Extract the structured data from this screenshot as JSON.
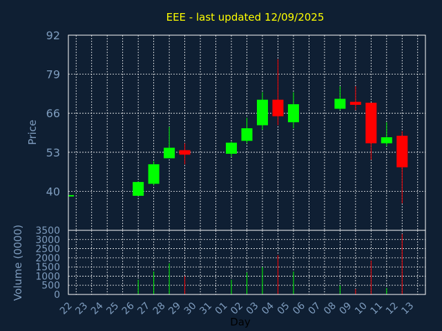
{
  "chart_data": {
    "type": "candlestick",
    "title": "EEE - last updated 12/09/2025",
    "xlabel": "Day",
    "ylabel_price": "Price",
    "ylabel_volume": "Volume (0000)",
    "price_ylim": [
      27,
      92
    ],
    "price_ticks": [
      40,
      53,
      66,
      79,
      92
    ],
    "volume_ylim": [
      0,
      3500
    ],
    "volume_ticks": [
      0,
      500,
      1000,
      1500,
      2000,
      2500,
      3000,
      3500
    ],
    "x_labels": [
      "22",
      "23",
      "24",
      "25",
      "26",
      "27",
      "28",
      "29",
      "30",
      "31",
      "01",
      "02",
      "03",
      "04",
      "05",
      "06",
      "07",
      "08",
      "09",
      "10",
      "11",
      "12",
      "13"
    ],
    "colors": {
      "background": "#0f1f33",
      "plot_border": "#ffffff",
      "grid": "#ffffff",
      "up": "#00ff00",
      "down": "#ff0000",
      "title": "#ffff00",
      "axis_text": "#7f9dbf",
      "xlabel_text": "#000000"
    },
    "candles": [
      {
        "i": 0,
        "open": 38.5,
        "high": 38.6,
        "low": 38.3,
        "close": 38.5,
        "volume": 0
      },
      {
        "i": 4,
        "open": 38.5,
        "high": 43.2,
        "low": 38.5,
        "close": 43.1,
        "volume": 800
      },
      {
        "i": 5,
        "open": 42.5,
        "high": 50.0,
        "low": 42.0,
        "close": 49.0,
        "volume": 1250
      },
      {
        "i": 6,
        "open": 51.0,
        "high": 61.5,
        "low": 51.0,
        "close": 54.5,
        "volume": 1700
      },
      {
        "i": 7,
        "open": 53.7,
        "high": 56.0,
        "low": 49.0,
        "close": 52.2,
        "volume": 1000
      },
      {
        "i": 10,
        "open": 52.5,
        "high": 56.5,
        "low": 51.5,
        "close": 56.2,
        "volume": 800
      },
      {
        "i": 11,
        "open": 56.8,
        "high": 64.5,
        "low": 56.0,
        "close": 61.0,
        "volume": 1200
      },
      {
        "i": 12,
        "open": 62.0,
        "high": 73.0,
        "low": 60.5,
        "close": 70.5,
        "volume": 1500
      },
      {
        "i": 13,
        "open": 70.5,
        "high": 84.0,
        "low": 62.0,
        "close": 65.0,
        "volume": 2150
      },
      {
        "i": 14,
        "open": 63.0,
        "high": 73.0,
        "low": 61.0,
        "close": 69.0,
        "volume": 1250
      },
      {
        "i": 17,
        "open": 67.5,
        "high": 75.0,
        "low": 67.0,
        "close": 70.8,
        "volume": 500
      },
      {
        "i": 18,
        "open": 69.8,
        "high": 75.0,
        "low": 67.0,
        "close": 68.8,
        "volume": 300
      },
      {
        "i": 19,
        "open": 69.5,
        "high": 69.5,
        "low": 50.5,
        "close": 56.0,
        "volume": 1850
      },
      {
        "i": 20,
        "open": 56.0,
        "high": 63.0,
        "low": 55.0,
        "close": 58.0,
        "volume": 350
      },
      {
        "i": 21,
        "open": 58.5,
        "high": 60.0,
        "low": 36.0,
        "close": 48.0,
        "volume": 3300
      }
    ]
  }
}
